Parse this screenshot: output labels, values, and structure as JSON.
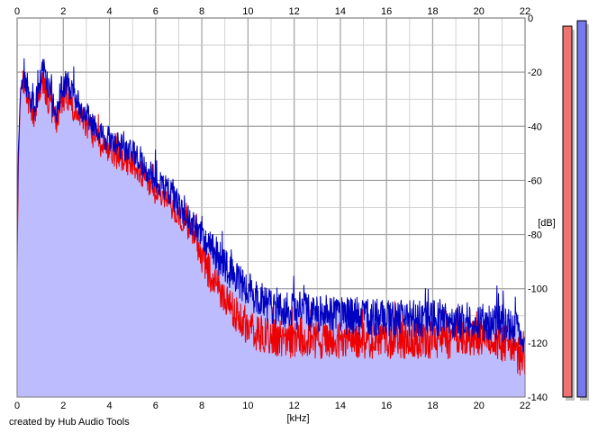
{
  "footer": {
    "credit": "created by Hub Audio Tools"
  },
  "chart_data": {
    "type": "area",
    "xlabel": "[kHz]",
    "ylabel": "[dB]",
    "xlim": [
      0,
      22
    ],
    "ylim": [
      -140,
      0
    ],
    "x_ticks": [
      "0",
      "2",
      "4",
      "6",
      "8",
      "10",
      "12",
      "14",
      "16",
      "18",
      "20",
      "22"
    ],
    "y_ticks": [
      "0",
      "-20",
      "-40",
      "-60",
      "-80",
      "-100",
      "-120",
      "-140"
    ],
    "grid": true,
    "fill_color": "#bcbcff",
    "colors": {
      "blue_series": "#0000c0",
      "red_series": "#ee0000",
      "grid_major": "#a0a0a0",
      "grid_minor": "#c8c8c8",
      "meter_left": "#ef7373",
      "meter_right": "#7878ee",
      "meter_shadow": "#c0c0c0"
    },
    "series": [
      {
        "color": "#0000c0",
        "x": [
          0,
          0.05,
          0.15,
          0.3,
          0.5,
          0.7,
          0.9,
          1.0,
          1.1,
          1.3,
          1.5,
          1.7,
          1.9,
          2.0,
          2.2,
          2.5,
          3.0,
          3.5,
          4.0,
          4.5,
          5.0,
          5.5,
          6.0,
          6.5,
          7.0,
          7.5,
          8.0,
          8.5,
          9.0,
          9.5,
          10,
          10.5,
          11,
          12,
          13,
          14,
          15,
          16,
          17,
          18,
          19,
          20,
          21,
          21.5,
          22
        ],
        "y": [
          -85,
          -50,
          -26,
          -22,
          -30,
          -35,
          -27,
          -24,
          -16,
          -24,
          -30,
          -36,
          -26,
          -25,
          -24,
          -30,
          -36,
          -42,
          -45,
          -48,
          -50,
          -55,
          -60,
          -63,
          -69,
          -75,
          -80,
          -86,
          -91,
          -97,
          -101,
          -104,
          -106,
          -108,
          -109,
          -110,
          -110,
          -111,
          -111,
          -111,
          -112,
          -112,
          -113,
          -115,
          -117
        ]
      },
      {
        "color": "#ee0000",
        "x": [
          0,
          0.05,
          0.15,
          0.3,
          0.5,
          0.7,
          0.9,
          1.0,
          1.1,
          1.3,
          1.5,
          1.7,
          1.9,
          2.0,
          2.2,
          2.5,
          3.0,
          3.5,
          4.0,
          4.5,
          5.0,
          5.5,
          6.0,
          6.5,
          7.0,
          7.5,
          8.0,
          8.5,
          9.0,
          9.5,
          10,
          10.5,
          11,
          12,
          13,
          14,
          15,
          16,
          17,
          18,
          19,
          20,
          21,
          21.5,
          22
        ],
        "y": [
          -95,
          -55,
          -27,
          -23,
          -32,
          -38,
          -30,
          -29,
          -23,
          -29,
          -34,
          -40,
          -31,
          -30,
          -29,
          -34,
          -40,
          -46,
          -49,
          -52,
          -54,
          -59,
          -64,
          -67,
          -73,
          -78,
          -88,
          -97,
          -104,
          -110,
          -115,
          -117,
          -118,
          -119,
          -119,
          -119,
          -119,
          -119,
          -119,
          -119,
          -119,
          -118,
          -120,
          -123,
          -127
        ]
      }
    ],
    "meters": {
      "left_level_db": -3,
      "right_level_db": -1
    }
  }
}
